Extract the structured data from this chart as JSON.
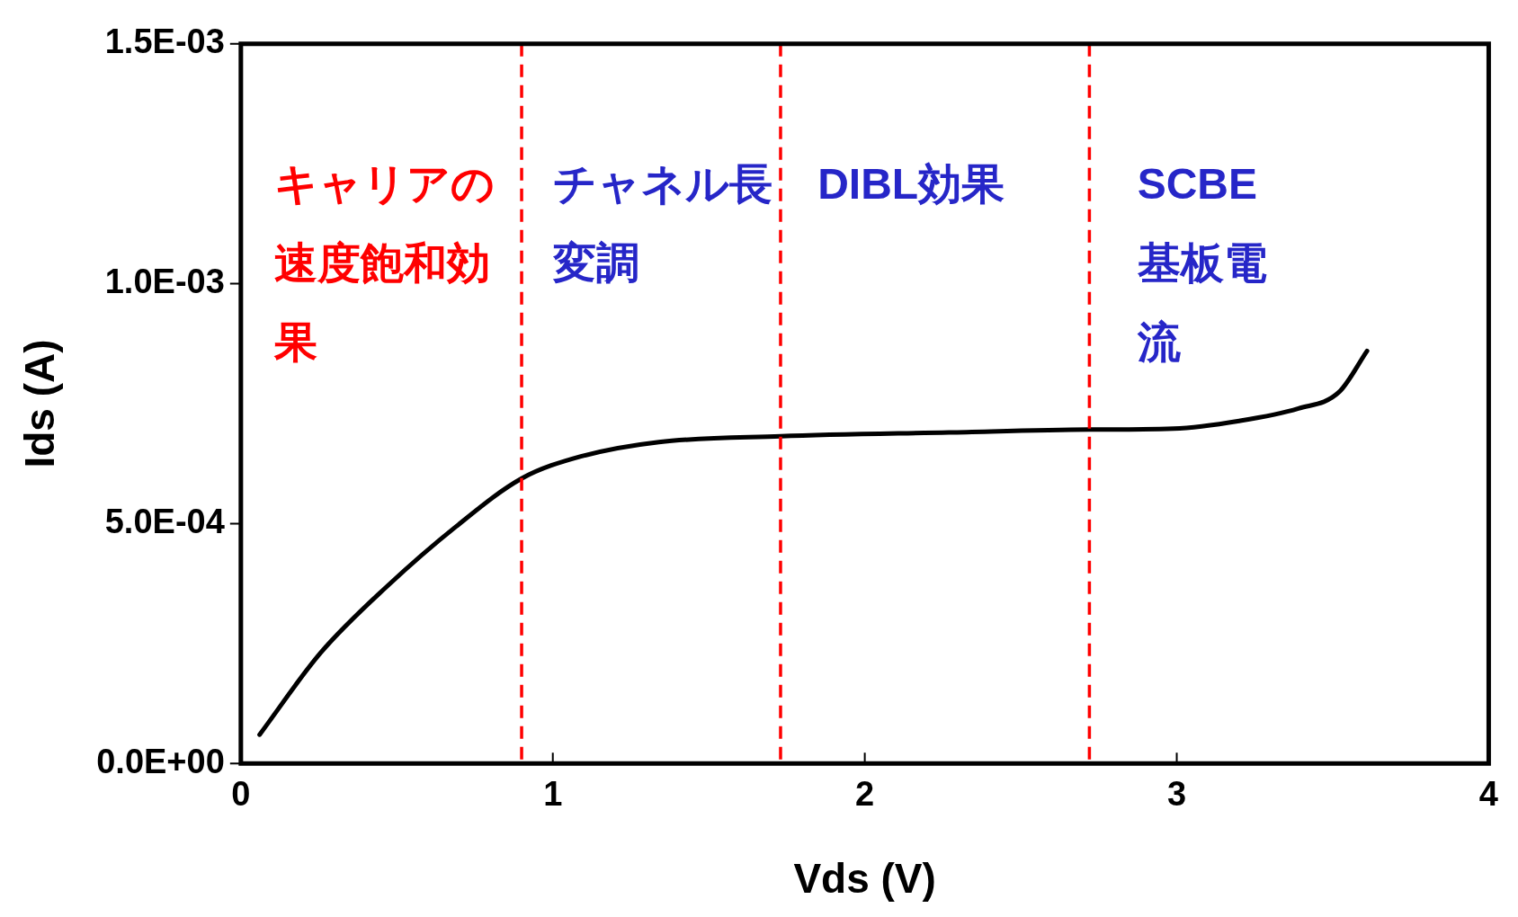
{
  "chart_data": {
    "type": "line",
    "xlabel": "Vds (V)",
    "ylabel": "Ids (A)",
    "xlim": [
      0,
      4
    ],
    "xticks": [
      0,
      1,
      2,
      3,
      4
    ],
    "ylim": [
      0,
      0.0015
    ],
    "yticks": [
      {
        "value": 0,
        "label": "0.0E+00"
      },
      {
        "value": 0.0005,
        "label": "5.0E-04"
      },
      {
        "value": 0.001,
        "label": "1.0E-03"
      },
      {
        "value": 0.0015,
        "label": "1.5E-03"
      }
    ],
    "grid": false,
    "legend": false,
    "marker": "none",
    "line_style": "solid",
    "series": [
      {
        "color": "#000000",
        "x": [
          0.06,
          0.255,
          0.47,
          0.69,
          0.9,
          1.09,
          1.34,
          1.73,
          2.27,
          2.72,
          2.99,
          3.2,
          3.39,
          3.52,
          3.61
        ],
        "values": [
          6e-05,
          0.00023,
          0.00037,
          0.000494,
          0.000594,
          0.00064,
          0.00067,
          0.000682,
          0.00069,
          0.000696,
          0.000698,
          0.000714,
          0.00074,
          0.000774,
          0.00086
        ]
      }
    ],
    "ref_lines": [
      {
        "axis": "x",
        "value": 0.9,
        "color": "#ff0000",
        "line_style": "dashed"
      },
      {
        "axis": "x",
        "value": 1.73,
        "color": "#ff0000",
        "line_style": "dashed"
      },
      {
        "axis": "x",
        "value": 2.72,
        "color": "#ff0000",
        "line_style": "dashed"
      }
    ],
    "annotations": [
      "キャリアの速度飽和効果",
      "チャネル長変調",
      "DIBL効果",
      "SCBE基板電流"
    ]
  }
}
